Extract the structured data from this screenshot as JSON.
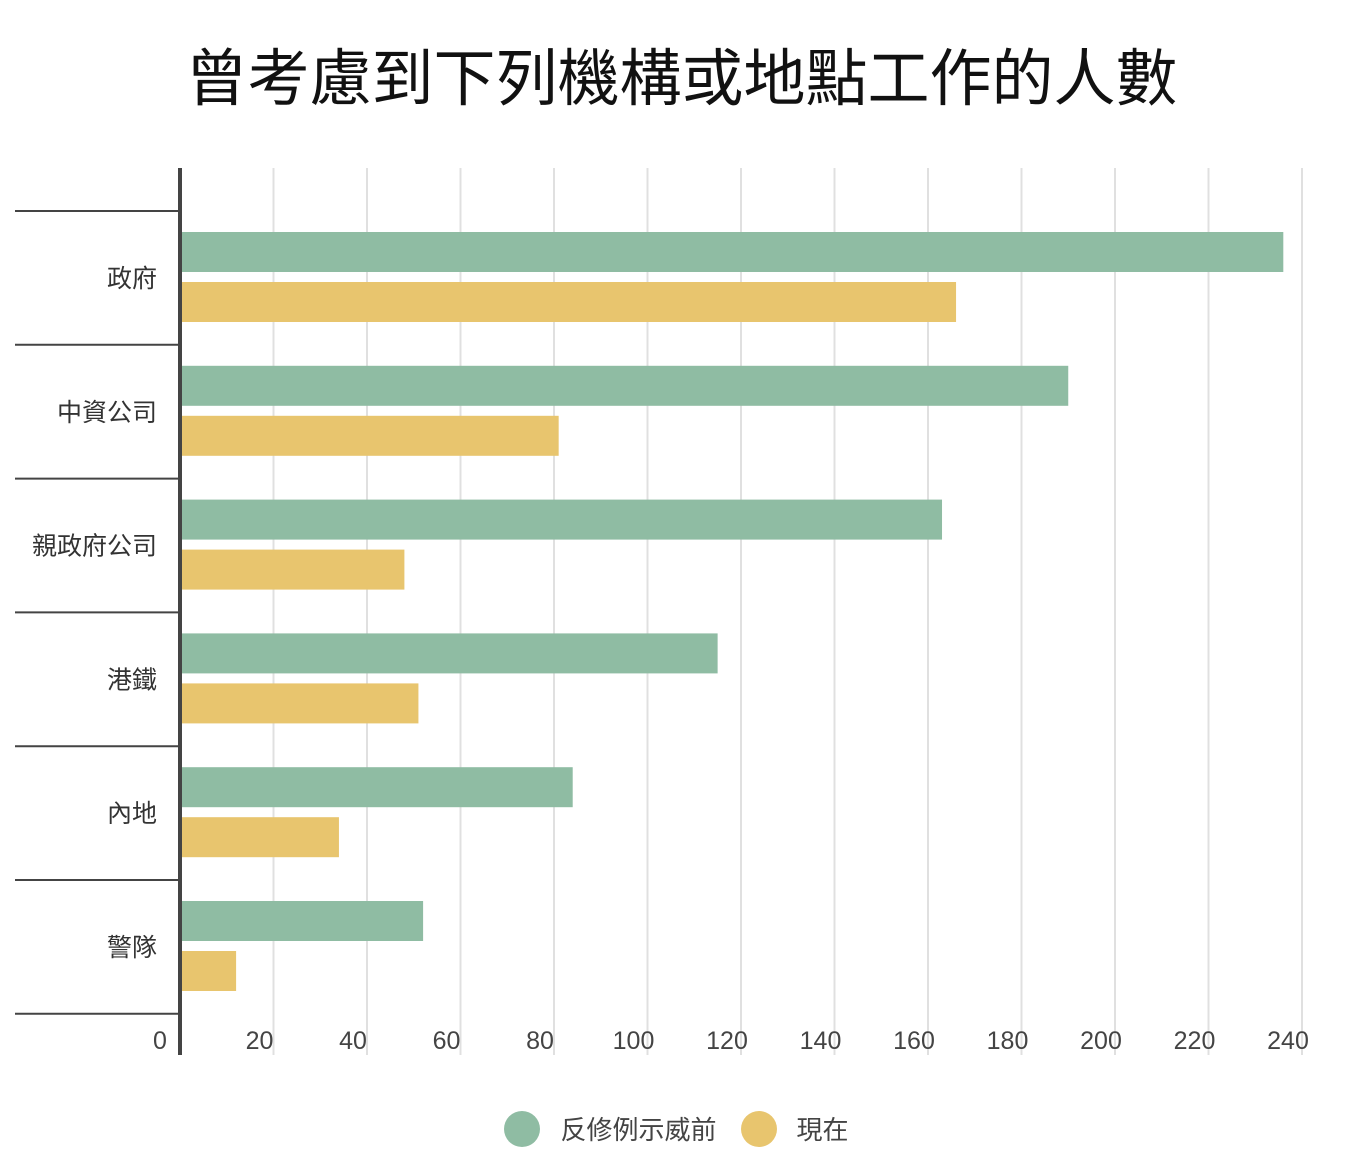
{
  "chart_data": {
    "type": "bar",
    "orientation": "horizontal",
    "title": "曾考慮到下列機構或地點工作的人數",
    "categories": [
      "政府",
      "中資公司",
      "親政府公司",
      "港鐵",
      "內地",
      "警隊"
    ],
    "series": [
      {
        "name": "反修例示威前",
        "color": "#8fbca3",
        "values": [
          236,
          190,
          163,
          115,
          84,
          52
        ]
      },
      {
        "name": "現在",
        "color": "#e8c56e",
        "values": [
          166,
          81,
          48,
          51,
          34,
          12
        ]
      }
    ],
    "xlim": [
      0,
      240
    ],
    "xticks": [
      0,
      20,
      40,
      60,
      80,
      100,
      120,
      140,
      160,
      180,
      200,
      220,
      240
    ],
    "grid": true,
    "legend": "bottom-center"
  }
}
